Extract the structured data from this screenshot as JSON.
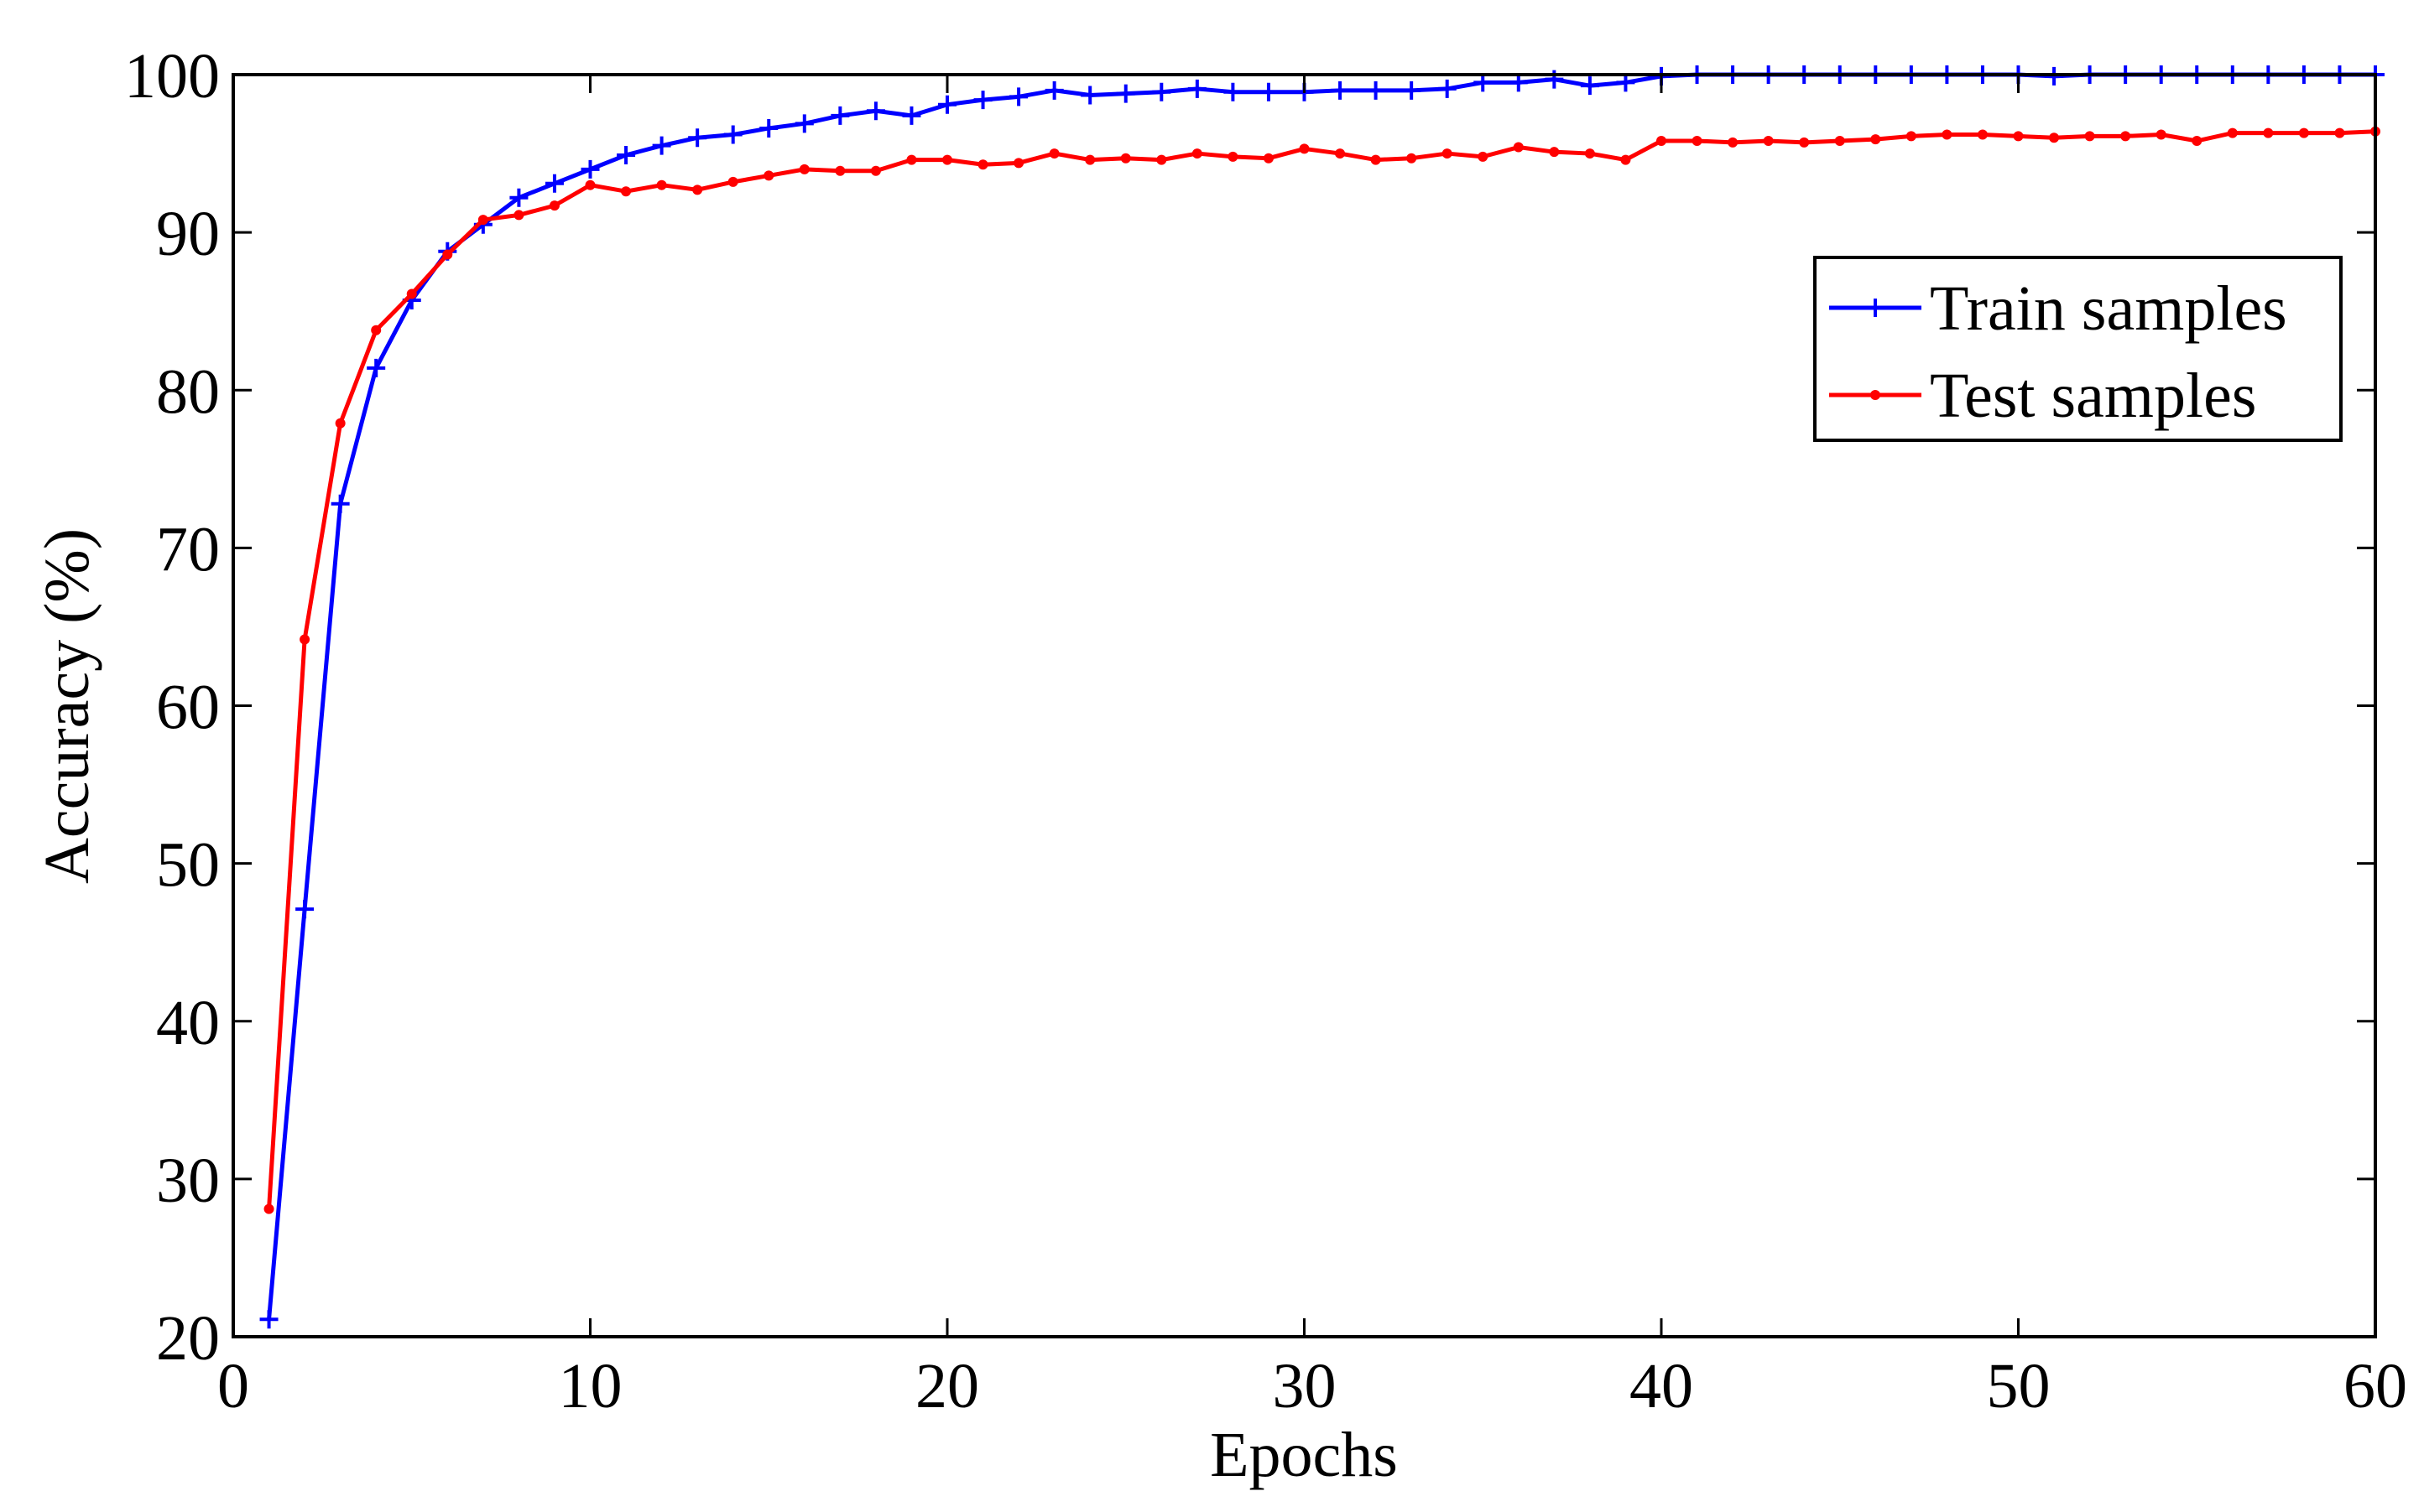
{
  "chart_data": {
    "type": "line",
    "title": "",
    "xlabel": "Epochs",
    "ylabel": "Accuracy (%)",
    "xlim": [
      0,
      60
    ],
    "ylim": [
      20,
      100
    ],
    "xticks": [
      0,
      10,
      20,
      30,
      40,
      50,
      60
    ],
    "yticks": [
      20,
      30,
      40,
      50,
      60,
      70,
      80,
      90,
      100
    ],
    "grid": false,
    "legend_position": "upper-right",
    "x": [
      1,
      2,
      3,
      4,
      5,
      6,
      7,
      8,
      9,
      10,
      11,
      12,
      13,
      14,
      15,
      16,
      17,
      18,
      19,
      20,
      21,
      22,
      23,
      24,
      25,
      26,
      27,
      28,
      29,
      30,
      31,
      32,
      33,
      34,
      35,
      36,
      37,
      38,
      39,
      40,
      41,
      42,
      43,
      44,
      45,
      46,
      47,
      48,
      49,
      50,
      51,
      52,
      53,
      54,
      55,
      56,
      57,
      58,
      59,
      60
    ],
    "series": [
      {
        "name": "Train samples",
        "color": "#0000ff",
        "marker": "plus",
        "values": [
          21.1,
          47.1,
          72.8,
          81.4,
          85.7,
          88.8,
          90.5,
          92.2,
          93.1,
          94.0,
          94.9,
          95.5,
          96.0,
          96.2,
          96.6,
          96.9,
          97.4,
          97.7,
          97.4,
          98.1,
          98.4,
          98.6,
          99.0,
          98.7,
          98.8,
          98.9,
          99.1,
          98.9,
          98.9,
          98.9,
          99.0,
          99.0,
          99.0,
          99.1,
          99.5,
          99.5,
          99.7,
          99.3,
          99.5,
          99.9,
          100,
          100,
          100,
          100,
          100,
          100,
          100,
          100,
          100,
          100,
          99.9,
          100,
          100,
          100,
          100,
          100,
          100,
          100,
          100,
          100
        ]
      },
      {
        "name": "Test samples",
        "color": "#ff0000",
        "marker": "dot",
        "values": [
          28.1,
          64.2,
          77.9,
          83.8,
          86.1,
          88.6,
          90.8,
          91.1,
          91.7,
          93.0,
          92.6,
          93.0,
          92.7,
          93.2,
          93.6,
          94.0,
          93.9,
          93.9,
          94.6,
          94.6,
          94.3,
          94.4,
          95.0,
          94.6,
          94.7,
          94.6,
          95.0,
          94.8,
          94.7,
          95.3,
          95.0,
          94.6,
          94.7,
          95.0,
          94.8,
          95.4,
          95.1,
          95.0,
          94.6,
          95.8,
          95.8,
          95.7,
          95.8,
          95.7,
          95.8,
          95.9,
          96.1,
          96.2,
          96.2,
          96.1,
          96.0,
          96.1,
          96.1,
          96.2,
          95.8,
          96.3,
          96.3,
          96.3,
          96.3,
          96.4
        ]
      }
    ]
  }
}
